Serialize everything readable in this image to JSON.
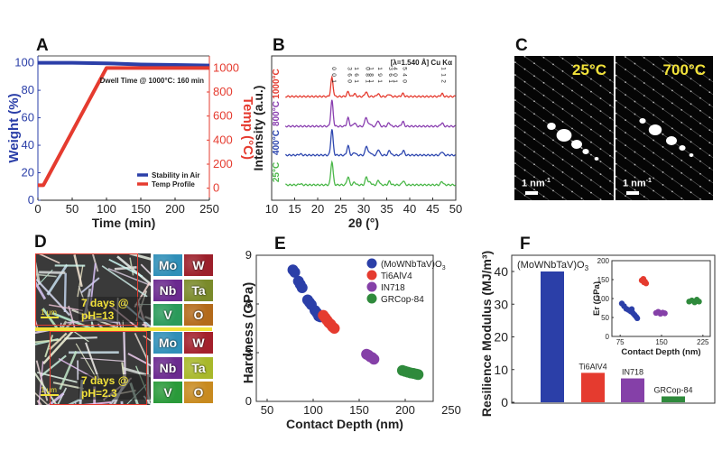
{
  "panels": {
    "A": "A",
    "B": "B",
    "C": "C",
    "D": "D",
    "E": "E",
    "F": "F"
  },
  "colors": {
    "blue": "#2b3fa8",
    "red": "#e53b2f",
    "purple": "#8540a8",
    "green": "#2f8a3c",
    "xrd_green": "#4cb84a",
    "xrd_blue": "#2f48b0",
    "xrd_purple": "#8a3fb0",
    "xrd_red": "#e53b2f",
    "yellow": "#f2e23a"
  },
  "chart_data": [
    {
      "id": "A",
      "type": "line",
      "xlabel": "Time (min)",
      "ylabel": "Weight (%)",
      "ylabel_right": "Temp (°C)",
      "xlim": [
        0,
        250
      ],
      "ylim": [
        0,
        105
      ],
      "ylim_right": [
        -100,
        1100
      ],
      "xticks": [
        0,
        50,
        100,
        150,
        200,
        250
      ],
      "yticks": [
        0,
        20,
        40,
        60,
        80,
        100
      ],
      "yticks_right": [
        0,
        200,
        400,
        600,
        800,
        1000
      ],
      "annotation": "Dwell Time @ 1000°C: 160 min",
      "legend": [
        "Stability in Air",
        "Temp Profile"
      ],
      "legend_position": "bottom-right",
      "series": [
        {
          "name": "Stability in Air",
          "axis": "left",
          "x": [
            0,
            50,
            100,
            150,
            200,
            250
          ],
          "y": [
            100,
            100,
            99.6,
            98.8,
            98.4,
            98.0
          ]
        },
        {
          "name": "Temp Profile",
          "axis": "right",
          "x": [
            0,
            8,
            100,
            250
          ],
          "y": [
            25,
            25,
            1000,
            1000
          ]
        }
      ]
    },
    {
      "id": "B",
      "type": "line",
      "xlabel": "2θ (°)",
      "ylabel": "Intensity (a.u.)",
      "xlim": [
        10,
        50
      ],
      "xticks": [
        10,
        15,
        20,
        25,
        30,
        35,
        40,
        45,
        50
      ],
      "annotation": "[λ=1.540 Å] Cu Kα",
      "peak_labels": [
        {
          "x": 23.1,
          "label": "0 0 1"
        },
        {
          "x": 26.6,
          "label": "3 6 0"
        },
        {
          "x": 28.0,
          "label": "1 6 1"
        },
        {
          "x": 30.5,
          "label": "0 8 1"
        },
        {
          "x": 31.3,
          "label": "1 8 1"
        },
        {
          "x": 33.1,
          "label": "1 9 1"
        },
        {
          "x": 35.5,
          "label": "3 6 1"
        },
        {
          "x": 36.5,
          "label": "4 0 1"
        },
        {
          "x": 38.5,
          "label": "5 4 0"
        },
        {
          "x": 47.0,
          "label": "1 1 2"
        }
      ],
      "series": [
        {
          "name": "25°C",
          "offset": 0,
          "peaks": [
            [
              23.1,
              1.0
            ],
            [
              26.6,
              0.35
            ],
            [
              28.0,
              0.12
            ],
            [
              30.6,
              0.35
            ],
            [
              31.4,
              0.12
            ],
            [
              33.2,
              0.2
            ],
            [
              35.6,
              0.15
            ],
            [
              38.6,
              0.18
            ],
            [
              47.0,
              0.15
            ],
            [
              16.2,
              0.05
            ]
          ]
        },
        {
          "name": "400°C",
          "offset": 1,
          "peaks": [
            [
              23.1,
              1.1
            ],
            [
              26.6,
              0.4
            ],
            [
              28.0,
              0.12
            ],
            [
              30.6,
              0.4
            ],
            [
              31.4,
              0.12
            ],
            [
              33.2,
              0.25
            ],
            [
              35.6,
              0.2
            ],
            [
              38.6,
              0.2
            ],
            [
              47.0,
              0.15
            ],
            [
              16.2,
              0.05
            ]
          ]
        },
        {
          "name": "800°C",
          "offset": 2,
          "peaks": [
            [
              23.1,
              1.1
            ],
            [
              26.6,
              0.35
            ],
            [
              28.0,
              0.15
            ],
            [
              30.5,
              0.4
            ],
            [
              31.3,
              0.12
            ],
            [
              33.1,
              0.25
            ],
            [
              35.5,
              0.15
            ],
            [
              38.5,
              0.2
            ],
            [
              47.0,
              0.15
            ]
          ]
        },
        {
          "name": "1000°C",
          "offset": 3,
          "peaks": [
            [
              23.1,
              0.8
            ],
            [
              26.6,
              0.2
            ],
            [
              28.0,
              0.12
            ],
            [
              30.5,
              0.2
            ],
            [
              33.1,
              0.12
            ],
            [
              35.5,
              0.1
            ],
            [
              38.5,
              0.12
            ],
            [
              47.0,
              0.12
            ]
          ]
        }
      ]
    },
    {
      "id": "E",
      "type": "scatter",
      "xlabel": "Contact Depth (nm)",
      "ylabel": "Hardness (GPa)",
      "xlim": [
        50,
        250
      ],
      "ylim": [
        0,
        9
      ],
      "xticks": [
        50,
        100,
        150,
        200,
        250
      ],
      "yticks": [
        0,
        3,
        6,
        9
      ],
      "legend_position": "top-right",
      "series": [
        {
          "name": "(MoWNbTaV)O3",
          "points": [
            [
              78,
              8.1
            ],
            [
              80,
              7.95
            ],
            [
              84,
              7.4
            ],
            [
              86,
              7.2
            ],
            [
              88,
              7.0
            ],
            [
              94,
              6.25
            ],
            [
              96,
              6.1
            ],
            [
              98,
              5.95
            ],
            [
              102,
              5.6
            ],
            [
              104,
              5.45
            ],
            [
              106,
              5.25
            ],
            [
              108,
              5.2
            ]
          ]
        },
        {
          "name": "Ti6AlV4",
          "points": [
            [
              111,
              5.3
            ],
            [
              113,
              5.15
            ],
            [
              115,
              5.0
            ],
            [
              117,
              4.85
            ],
            [
              119,
              4.75
            ],
            [
              121,
              4.6
            ],
            [
              123,
              4.5
            ]
          ]
        },
        {
          "name": "IN718",
          "points": [
            [
              158,
              2.9
            ],
            [
              160,
              2.85
            ],
            [
              162,
              2.75
            ],
            [
              164,
              2.7
            ],
            [
              166,
              2.6
            ]
          ]
        },
        {
          "name": "GRCop-84",
          "points": [
            [
              197,
              1.9
            ],
            [
              200,
              1.85
            ],
            [
              203,
              1.8
            ],
            [
              206,
              1.75
            ],
            [
              209,
              1.72
            ],
            [
              212,
              1.68
            ],
            [
              214,
              1.65
            ]
          ]
        }
      ]
    },
    {
      "id": "F",
      "type": "bar",
      "ylabel": "Resilience Modulus (MJ/m³)",
      "ylim": [
        0,
        45
      ],
      "yticks": [
        0,
        10,
        20,
        30,
        40
      ],
      "categories": [
        "(MoWNbTaV)O3",
        "Ti6AlV4",
        "IN718",
        "GRCop-84"
      ],
      "values": [
        40,
        9,
        7.3,
        1.8
      ],
      "inset": {
        "type": "scatter",
        "xlabel": "Contact Depth (nm)",
        "ylabel": "Er (GPa)",
        "xlim": [
          60,
          240
        ],
        "ylim": [
          0,
          200
        ],
        "xticks": [
          75,
          150,
          225
        ],
        "yticks": [
          0,
          50,
          100,
          150,
          200
        ],
        "series": [
          {
            "name": "(MoWNbTaV)O3",
            "points": [
              [
                78,
                87
              ],
              [
                82,
                80
              ],
              [
                86,
                73
              ],
              [
                90,
                70
              ],
              [
                94,
                66
              ],
              [
                96,
                72
              ],
              [
                98,
                62
              ],
              [
                101,
                57
              ],
              [
                104,
                52
              ],
              [
                106,
                48
              ]
            ]
          },
          {
            "name": "Ti6AlV4",
            "points": [
              [
                114,
                148
              ],
              [
                117,
                152
              ],
              [
                120,
                145
              ],
              [
                122,
                140
              ],
              [
                118,
                143
              ]
            ]
          },
          {
            "name": "IN718",
            "points": [
              [
                140,
                62
              ],
              [
                144,
                65
              ],
              [
                148,
                60
              ],
              [
                152,
                63
              ],
              [
                156,
                61
              ]
            ]
          },
          {
            "name": "GRCop-84",
            "points": [
              [
                200,
                92
              ],
              [
                205,
                95
              ],
              [
                210,
                90
              ],
              [
                214,
                97
              ],
              [
                218,
                92
              ]
            ]
          }
        ]
      }
    }
  ],
  "panelC": {
    "left_label": "25°C",
    "right_label": "700°C",
    "scale_text": "1 nm",
    "scale_sup": "-1"
  },
  "panelD": {
    "top_caption": "7 days @ pH=13",
    "bottom_caption": "7 days @ pH=2.3",
    "scale_text": "1 μm",
    "elements": [
      "Mo",
      "W",
      "Nb",
      "Ta",
      "V",
      "O"
    ],
    "element_colors": [
      "#2f8fb8",
      "#9c1f2a",
      "#6b2a8f",
      "#7a8a2a",
      "#2a9a5a",
      "#b36a1a"
    ],
    "element_colors_bottom": [
      "#2f8fb8",
      "#a3202b",
      "#6b2a8f",
      "#a8b82a",
      "#2a9a3a",
      "#c88a1f"
    ]
  }
}
